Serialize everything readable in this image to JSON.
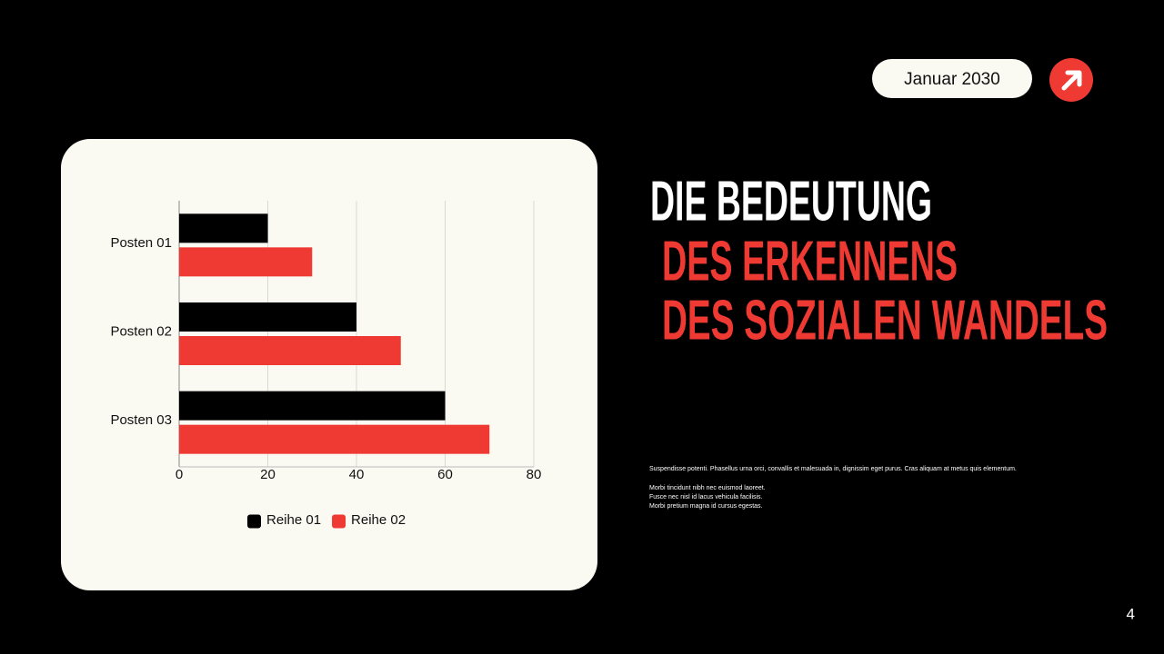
{
  "header": {
    "date": "Januar 2030"
  },
  "title": {
    "lines": [
      "DIE BEDEUTUNG",
      "DES ERKENNENS",
      "DES SOZIALEN WANDELS"
    ]
  },
  "body": {
    "paragraphs": [
      "Suspendisse potenti. Phasellus urna orci, convallis et malesuada in, dignissim eget purus. Cras aliquam at metus quis elementum.",
      "Morbi tincidunt nibh nec euismod laoreet.",
      "Fusce nec nisl id lacus vehicula facilisis.",
      "Morbi pretium magna id cursus egestas."
    ]
  },
  "page_number": 4,
  "chart_data": {
    "type": "bar",
    "orientation": "horizontal",
    "categories": [
      "Posten 01",
      "Posten 02",
      "Posten 03"
    ],
    "series": [
      {
        "name": "Reihe 01",
        "color": "#000000",
        "values": [
          20,
          40,
          60
        ]
      },
      {
        "name": "Reihe 02",
        "color": "#ee3a33",
        "values": [
          30,
          50,
          70
        ]
      }
    ],
    "xlim": [
      0,
      80
    ],
    "xticks": [
      0,
      20,
      40,
      60,
      80
    ],
    "grid": true,
    "legend": "bottom"
  }
}
